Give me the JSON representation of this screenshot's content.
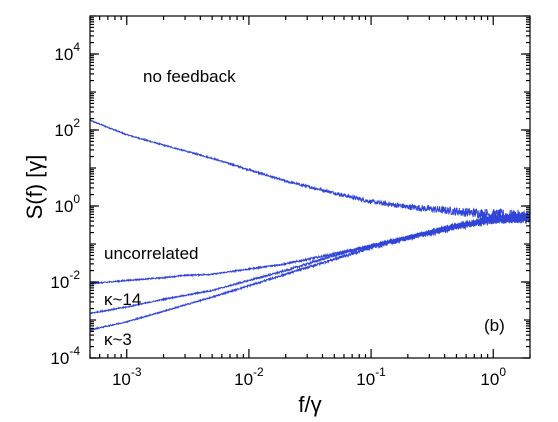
{
  "chart_data": {
    "type": "line",
    "xlabel": "f/γ",
    "ylabel": "S(f) [γ]",
    "x_scale": "log",
    "y_scale": "log",
    "xlim": [
      0.0005,
      2
    ],
    "ylim": [
      0.0001,
      100000
    ],
    "grid": false,
    "legend": "none",
    "x_ticks": [
      {
        "value": 0.001,
        "base": "10",
        "exp": "-3"
      },
      {
        "value": 0.01,
        "base": "10",
        "exp": "-2"
      },
      {
        "value": 0.1,
        "base": "10",
        "exp": "-1"
      },
      {
        "value": 1,
        "base": "10",
        "exp": "0"
      }
    ],
    "y_ticks": [
      {
        "value": 0.0001,
        "base": "10",
        "exp": "-4"
      },
      {
        "value": 0.01,
        "base": "10",
        "exp": "-2"
      },
      {
        "value": 1,
        "base": "10",
        "exp": "0"
      },
      {
        "value": 100,
        "base": "10",
        "exp": "2"
      },
      {
        "value": 10000,
        "base": "10",
        "exp": "4"
      }
    ],
    "panel_label": "(b)",
    "series": [
      {
        "name": "no feedback",
        "noise": 0.7,
        "x": [
          0.0005,
          0.001,
          0.002,
          0.005,
          0.01,
          0.02,
          0.05,
          0.1,
          0.2,
          0.5,
          1,
          2
        ],
        "y": [
          180,
          75,
          40,
          18,
          9,
          4.5,
          2.2,
          1.3,
          0.95,
          0.72,
          0.6,
          0.5
        ]
      },
      {
        "name": "uncorrelated",
        "noise": 0.35,
        "x": [
          0.0005,
          0.001,
          0.002,
          0.003,
          0.005,
          0.01,
          0.02,
          0.05,
          0.1,
          0.2,
          0.5,
          1,
          2
        ],
        "y": [
          0.009,
          0.011,
          0.013,
          0.015,
          0.016,
          0.022,
          0.03,
          0.055,
          0.09,
          0.15,
          0.3,
          0.45,
          0.5
        ]
      },
      {
        "name": "κ~14",
        "noise": 0.5,
        "x": [
          0.0005,
          0.001,
          0.002,
          0.005,
          0.01,
          0.02,
          0.05,
          0.1,
          0.2,
          0.5,
          1,
          2
        ],
        "y": [
          0.0015,
          0.0022,
          0.0035,
          0.006,
          0.011,
          0.02,
          0.05,
          0.09,
          0.15,
          0.3,
          0.45,
          0.5
        ]
      },
      {
        "name": "κ~3",
        "noise": 0.5,
        "x": [
          0.0005,
          0.001,
          0.002,
          0.005,
          0.01,
          0.02,
          0.05,
          0.1,
          0.2,
          0.5,
          1,
          2
        ],
        "y": [
          0.00055,
          0.0009,
          0.0017,
          0.004,
          0.008,
          0.016,
          0.04,
          0.08,
          0.14,
          0.28,
          0.43,
          0.5
        ]
      }
    ]
  }
}
